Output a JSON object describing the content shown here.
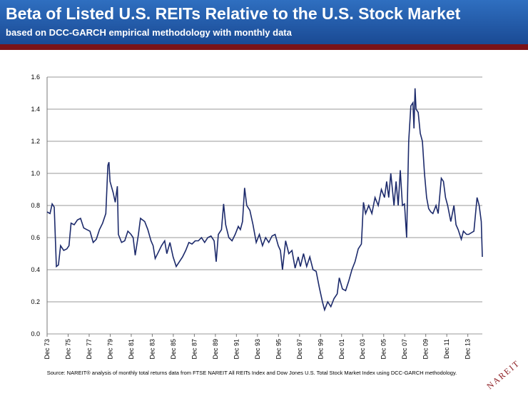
{
  "header": {
    "title": "Beta of Listed U.S. REITs Relative to the U.S. Stock Market",
    "subtitle": "based on DCC-GARCH empirical methodology with monthly data"
  },
  "chart_data": {
    "type": "line",
    "x": [
      1973.92,
      1974.2,
      1974.4,
      1974.6,
      1974.8,
      1975.0,
      1975.2,
      1975.5,
      1975.8,
      1976.0,
      1976.2,
      1976.5,
      1976.8,
      1977.1,
      1977.4,
      1977.7,
      1978.0,
      1978.3,
      1978.6,
      1978.9,
      1979.2,
      1979.5,
      1979.7,
      1979.8,
      1979.9,
      1980.2,
      1980.4,
      1980.6,
      1980.7,
      1981.0,
      1981.3,
      1981.6,
      1981.9,
      1982.1,
      1982.3,
      1982.6,
      1982.8,
      1983.2,
      1983.5,
      1983.8,
      1984.0,
      1984.2,
      1984.5,
      1984.8,
      1985.1,
      1985.3,
      1985.6,
      1985.9,
      1986.2,
      1986.5,
      1986.8,
      1987.1,
      1987.4,
      1987.7,
      1988.0,
      1988.3,
      1988.6,
      1988.9,
      1989.2,
      1989.5,
      1989.8,
      1990.0,
      1990.2,
      1990.5,
      1990.7,
      1990.9,
      1991.2,
      1991.5,
      1991.8,
      1992.1,
      1992.3,
      1992.5,
      1992.7,
      1992.9,
      1993.2,
      1993.5,
      1993.8,
      1994.1,
      1994.4,
      1994.7,
      1995.0,
      1995.3,
      1995.6,
      1995.9,
      1996.1,
      1996.3,
      1996.6,
      1996.9,
      1997.2,
      1997.5,
      1997.8,
      1998.0,
      1998.3,
      1998.6,
      1998.9,
      1999.2,
      1999.5,
      1999.8,
      2000.1,
      2000.3,
      2000.6,
      2000.9,
      2001.2,
      2001.5,
      2001.7,
      2002.0,
      2002.3,
      2002.6,
      2002.9,
      2003.2,
      2003.5,
      2003.8,
      2004.0,
      2004.2,
      2004.5,
      2004.8,
      2005.1,
      2005.4,
      2005.7,
      2006.0,
      2006.2,
      2006.4,
      2006.6,
      2006.9,
      2007.1,
      2007.3,
      2007.5,
      2007.7,
      2007.9,
      2008.1,
      2008.3,
      2008.5,
      2008.7,
      2008.8,
      2008.9,
      2009.0,
      2009.2,
      2009.4,
      2009.6,
      2009.8,
      2010.0,
      2010.2,
      2010.4,
      2010.6,
      2010.9,
      2011.1,
      2011.4,
      2011.6,
      2011.8,
      2012.0,
      2012.3,
      2012.6,
      2012.8,
      2013.0,
      2013.3,
      2013.5,
      2013.8,
      2014.0,
      2014.5,
      2014.8,
      2015.0,
      2015.2,
      2015.3
    ],
    "series": [
      {
        "color": "#1c2a6b",
        "values": [
          0.76,
          0.75,
          0.81,
          0.79,
          0.42,
          0.43,
          0.55,
          0.52,
          0.53,
          0.55,
          0.69,
          0.68,
          0.71,
          0.72,
          0.66,
          0.65,
          0.64,
          0.57,
          0.59,
          0.65,
          0.69,
          0.75,
          1.05,
          1.07,
          0.95,
          0.88,
          0.82,
          0.92,
          0.62,
          0.57,
          0.58,
          0.64,
          0.62,
          0.6,
          0.49,
          0.62,
          0.72,
          0.7,
          0.65,
          0.58,
          0.55,
          0.47,
          0.51,
          0.55,
          0.58,
          0.5,
          0.57,
          0.48,
          0.42,
          0.45,
          0.48,
          0.52,
          0.57,
          0.56,
          0.58,
          0.58,
          0.6,
          0.57,
          0.6,
          0.61,
          0.58,
          0.45,
          0.62,
          0.65,
          0.81,
          0.68,
          0.6,
          0.58,
          0.62,
          0.67,
          0.65,
          0.7,
          0.91,
          0.8,
          0.77,
          0.68,
          0.57,
          0.62,
          0.55,
          0.6,
          0.57,
          0.61,
          0.62,
          0.55,
          0.52,
          0.4,
          0.58,
          0.5,
          0.52,
          0.41,
          0.48,
          0.42,
          0.5,
          0.42,
          0.48,
          0.4,
          0.39,
          0.29,
          0.2,
          0.15,
          0.2,
          0.17,
          0.22,
          0.25,
          0.35,
          0.28,
          0.27,
          0.33,
          0.4,
          0.45,
          0.53,
          0.56,
          0.82,
          0.75,
          0.8,
          0.75,
          0.85,
          0.8,
          0.9,
          0.85,
          0.95,
          0.85,
          1.0,
          0.8,
          0.95,
          0.8,
          1.02,
          0.8,
          0.81,
          0.6,
          1.2,
          1.42,
          1.44,
          1.28,
          1.53,
          1.4,
          1.38,
          1.25,
          1.2,
          1.0,
          0.85,
          0.78,
          0.76,
          0.75,
          0.8,
          0.75,
          0.97,
          0.95,
          0.85,
          0.8,
          0.7,
          0.8,
          0.68,
          0.65,
          0.59,
          0.64,
          0.62,
          0.62,
          0.64,
          0.85,
          0.8,
          0.7,
          0.48
        ]
      }
    ],
    "xlim": [
      1973.92,
      2015.3
    ],
    "xticks": [
      {
        "value": 1973.92,
        "label": "Dec 73"
      },
      {
        "value": 1975.92,
        "label": "Dec 75"
      },
      {
        "value": 1977.92,
        "label": "Dec 77"
      },
      {
        "value": 1979.92,
        "label": "Dec 79"
      },
      {
        "value": 1981.92,
        "label": "Dec 81"
      },
      {
        "value": 1983.92,
        "label": "Dec 83"
      },
      {
        "value": 1985.92,
        "label": "Dec 85"
      },
      {
        "value": 1987.92,
        "label": "Dec 87"
      },
      {
        "value": 1989.92,
        "label": "Dec 89"
      },
      {
        "value": 1991.92,
        "label": "Dec 91"
      },
      {
        "value": 1993.92,
        "label": "Dec 93"
      },
      {
        "value": 1995.92,
        "label": "Dec 95"
      },
      {
        "value": 1997.92,
        "label": "Dec 97"
      },
      {
        "value": 1999.92,
        "label": "Dec 99"
      },
      {
        "value": 2001.92,
        "label": "Dec 01"
      },
      {
        "value": 2003.92,
        "label": "Dec 03"
      },
      {
        "value": 2005.92,
        "label": "Dec 05"
      },
      {
        "value": 2007.92,
        "label": "Dec 07"
      },
      {
        "value": 2009.92,
        "label": "Dec 09"
      },
      {
        "value": 2011.92,
        "label": "Dec 11"
      },
      {
        "value": 2013.92,
        "label": "Dec 13"
      }
    ],
    "ylim": [
      0,
      1.6
    ],
    "yticks": [
      {
        "value": 0,
        "label": "0.0"
      },
      {
        "value": 0.2,
        "label": "0.2"
      },
      {
        "value": 0.4,
        "label": "0.4"
      },
      {
        "value": 0.6,
        "label": "0.6"
      },
      {
        "value": 0.8,
        "label": "0.8"
      },
      {
        "value": 1,
        "label": "1.0"
      },
      {
        "value": 1.2,
        "label": "1.2"
      },
      {
        "value": 1.4,
        "label": "1.4"
      },
      {
        "value": 1.6,
        "label": "1.6"
      }
    ],
    "grid": true
  },
  "footer": {
    "source": "Source: NAREIT® analysis of monthly total returns data from FTSE NAREIT All REITs Index and Dow Jones U.S. Total Stock Market Index using DCC-GARCH methodology.",
    "logo": "NAREIT"
  }
}
